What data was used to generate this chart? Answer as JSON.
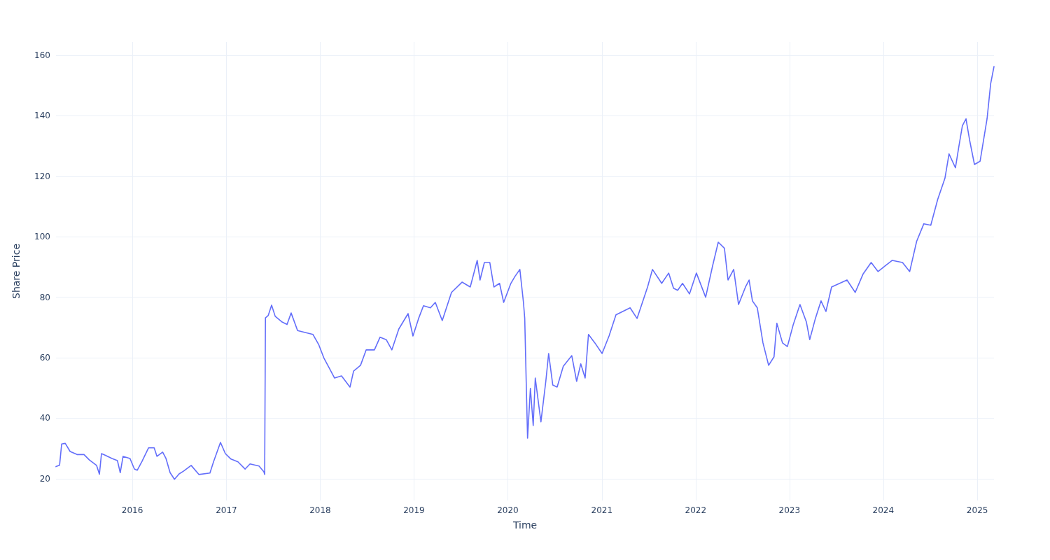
{
  "chart_data": {
    "type": "line",
    "xlabel": "Time",
    "ylabel": "Share Price",
    "x": [
      "2015-03-10",
      "2015-03-24",
      "2015-04-01",
      "2015-04-15",
      "2015-05-04",
      "2015-05-31",
      "2015-06-27",
      "2015-07-18",
      "2015-08-15",
      "2015-08-26",
      "2015-09-03",
      "2015-09-17",
      "2015-10-14",
      "2015-11-04",
      "2015-11-15",
      "2015-11-26",
      "2015-12-23",
      "2016-01-09",
      "2016-01-20",
      "2016-02-08",
      "2016-03-04",
      "2016-03-26",
      "2016-04-06",
      "2016-04-28",
      "2016-05-11",
      "2016-05-27",
      "2016-06-13",
      "2016-07-01",
      "2016-07-18",
      "2016-08-17",
      "2016-09-16",
      "2016-10-29",
      "2016-11-12",
      "2016-12-09",
      "2016-12-28",
      "2017-01-19",
      "2017-02-15",
      "2017-03-15",
      "2017-04-03",
      "2017-05-08",
      "2017-05-27",
      "2017-05-30",
      "2017-06-02",
      "2017-06-13",
      "2017-06-26",
      "2017-07-10",
      "2017-08-06",
      "2017-08-25",
      "2017-09-10",
      "2017-10-05",
      "2017-11-01",
      "2017-12-04",
      "2017-12-26",
      "2018-01-16",
      "2018-02-04",
      "2018-02-26",
      "2018-03-25",
      "2018-04-27",
      "2018-05-11",
      "2018-06-07",
      "2018-06-29",
      "2018-07-31",
      "2018-08-22",
      "2018-09-15",
      "2018-10-07",
      "2018-11-03",
      "2018-12-09",
      "2018-12-28",
      "2019-01-19",
      "2019-02-07",
      "2019-03-06",
      "2019-03-25",
      "2019-04-21",
      "2019-05-27",
      "2019-07-07",
      "2019-08-08",
      "2019-09-04",
      "2019-09-15",
      "2019-10-02",
      "2019-10-23",
      "2019-11-08",
      "2019-11-30",
      "2019-12-16",
      "2020-01-13",
      "2020-01-29",
      "2020-02-17",
      "2020-03-02",
      "2020-03-07",
      "2020-03-13",
      "2020-03-18",
      "2020-03-29",
      "2020-04-09",
      "2020-04-17",
      "2020-05-01",
      "2020-05-09",
      "2020-05-28",
      "2020-06-08",
      "2020-06-24",
      "2020-07-11",
      "2020-08-04",
      "2020-09-06",
      "2020-09-25",
      "2020-10-11",
      "2020-10-28",
      "2020-11-10",
      "2020-12-05",
      "2021-01-02",
      "2021-01-29",
      "2021-02-25",
      "2021-04-21",
      "2021-05-18",
      "2021-06-28",
      "2021-07-17",
      "2021-08-22",
      "2021-09-18",
      "2021-10-07",
      "2021-10-23",
      "2021-11-11",
      "2021-12-08",
      "2022-01-04",
      "2022-02-09",
      "2022-03-08",
      "2022-03-30",
      "2022-04-23",
      "2022-05-07",
      "2022-05-29",
      "2022-06-17",
      "2022-07-14",
      "2022-07-28",
      "2022-08-10",
      "2022-08-29",
      "2022-09-20",
      "2022-10-12",
      "2022-11-02",
      "2022-11-13",
      "2022-12-05",
      "2022-12-24",
      "2023-01-15",
      "2023-02-11",
      "2023-03-08",
      "2023-03-21",
      "2023-04-12",
      "2023-05-04",
      "2023-05-23",
      "2023-06-14",
      "2023-08-13",
      "2023-09-14",
      "2023-10-14",
      "2023-11-15",
      "2023-12-12",
      "2024-01-09",
      "2024-02-05",
      "2024-03-16",
      "2024-04-13",
      "2024-05-10",
      "2024-06-07",
      "2024-07-04",
      "2024-07-31",
      "2024-08-28",
      "2024-09-13",
      "2024-10-08",
      "2024-10-21",
      "2024-11-04",
      "2024-11-18",
      "2024-12-02",
      "2024-12-21",
      "2025-01-12",
      "2025-02-08",
      "2025-02-22",
      "2025-03-07"
    ],
    "series": [
      {
        "color": "#636efa",
        "values": [
          24,
          24.5,
          31.5,
          31.7,
          29,
          28,
          28,
          26.2,
          24.4,
          21.5,
          28.3,
          27.8,
          26.7,
          26,
          22,
          27.4,
          26.7,
          23.2,
          22.8,
          25.8,
          30.2,
          30.2,
          27.4,
          28.8,
          26.7,
          22,
          19.8,
          21.6,
          22.5,
          24.4,
          21.4,
          21.9,
          25.6,
          32,
          28.3,
          26.5,
          25.6,
          23.2,
          24.9,
          24.2,
          22.3,
          21.4,
          73.2,
          74,
          77.4,
          73.7,
          71.8,
          71,
          74.8,
          69,
          68.4,
          67.7,
          64.4,
          59.8,
          56.8,
          53.3,
          54,
          50.3,
          55.6,
          57.5,
          62.6,
          62.6,
          66.8,
          66,
          62.6,
          69.5,
          74.6,
          67.2,
          73,
          77.2,
          76.5,
          78.3,
          72.3,
          81.6,
          85,
          83.4,
          92.2,
          85.7,
          91.5,
          91.5,
          83.4,
          84.6,
          78.3,
          84.6,
          86.9,
          89.2,
          78.3,
          73,
          51,
          33.4,
          49.9,
          37.6,
          53.3,
          44,
          38.8,
          52.2,
          61.4,
          51,
          50.3,
          57.2,
          60.7,
          52.2,
          58,
          53.3,
          67.7,
          64.9,
          61.4,
          67.2,
          74.2,
          76.5,
          73,
          83.4,
          89.2,
          84.6,
          88,
          83,
          82.3,
          84.6,
          81.1,
          88,
          80,
          90.4,
          98.2,
          96.2,
          85.7,
          89.2,
          77.6,
          83.4,
          85.7,
          78.8,
          76.5,
          64.9,
          57.5,
          60.3,
          71.4,
          64.9,
          63.7,
          70.7,
          77.6,
          71.8,
          66,
          73,
          78.8,
          75.3,
          83.4,
          85.7,
          81.6,
          87.6,
          91.5,
          88.5,
          90.4,
          92.2,
          91.5,
          88.5,
          98.5,
          104.3,
          103.8,
          112.4,
          119.3,
          127.4,
          122.8,
          129.7,
          136.7,
          139,
          132,
          123.9,
          125,
          139,
          150.6,
          156.3
        ]
      }
    ],
    "xlim": [
      "2015-03-10",
      "2025-03-07"
    ],
    "xticks": [
      "2016",
      "2017",
      "2018",
      "2019",
      "2020",
      "2021",
      "2022",
      "2023",
      "2024",
      "2025"
    ],
    "ylim": [
      12.8,
      164.4
    ],
    "yticks": [
      20,
      40,
      60,
      80,
      100,
      120,
      140,
      160
    ],
    "grid": true,
    "marker": "none",
    "line_style": "solid"
  }
}
